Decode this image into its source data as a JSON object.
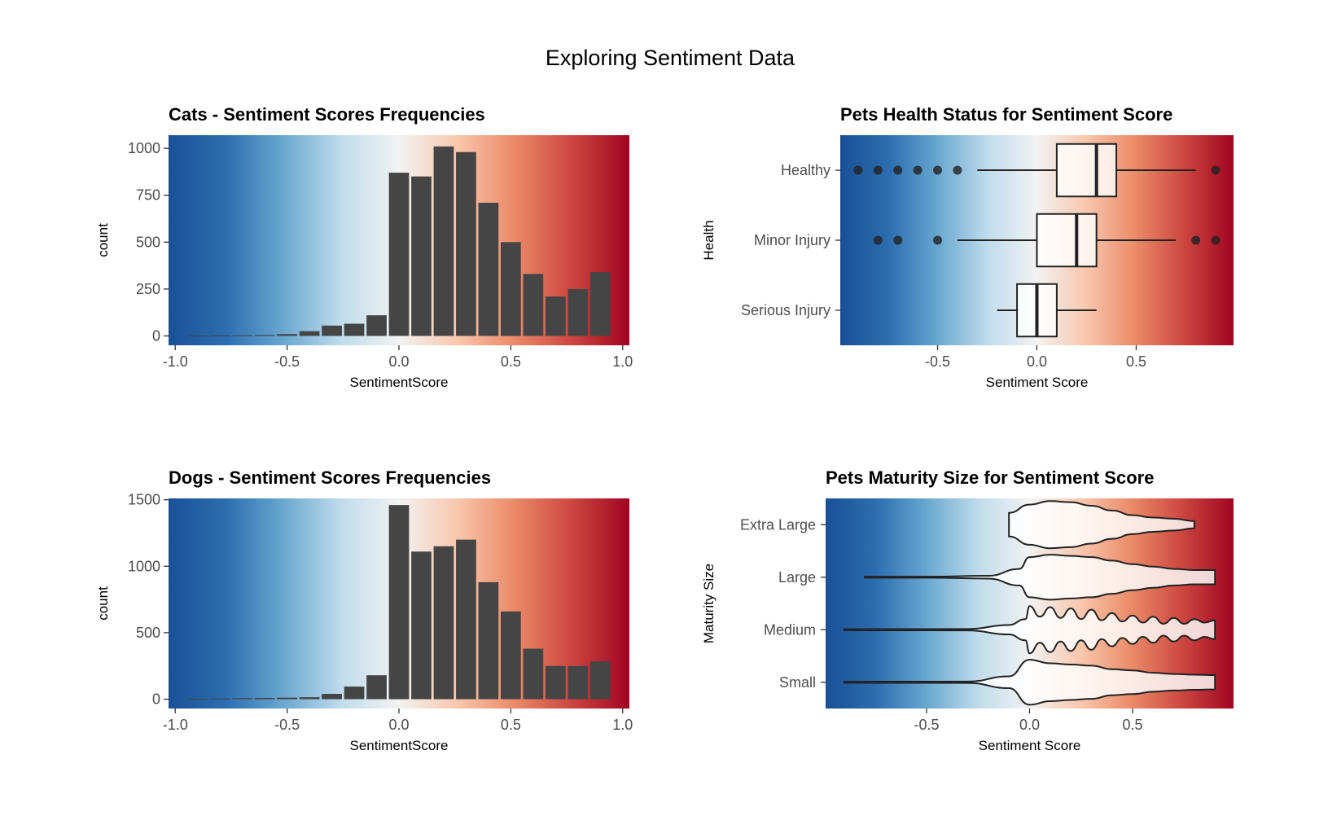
{
  "title": "Exploring Sentiment Data",
  "colors": {
    "gradient": [
      "#1a4f97",
      "#2c6eb0",
      "#6aa8d0",
      "#c0dcec",
      "#f2f2f2",
      "#f9c7ad",
      "#eb8a68",
      "#cc4640",
      "#a10421"
    ],
    "bar": "#454545",
    "outline": "#222222"
  },
  "chart_data": [
    {
      "type": "bar",
      "title": "Cats - Sentiment Scores Frequencies",
      "xlabel": "SentimentScore",
      "ylabel": "count",
      "xlim": [
        -1.03,
        1.03
      ],
      "ylim": [
        -50,
        1070
      ],
      "xticks": [
        -1.0,
        -0.5,
        0.0,
        0.5,
        1.0
      ],
      "xtick_labels": [
        "-1.0",
        "-0.5",
        "0.0",
        "0.5",
        "1.0"
      ],
      "yticks": [
        0,
        250,
        500,
        750,
        1000
      ],
      "ytick_labels": [
        "0",
        "250",
        "500",
        "750",
        "1000"
      ],
      "x": [
        -0.9,
        -0.8,
        -0.7,
        -0.6,
        -0.5,
        -0.4,
        -0.3,
        -0.2,
        -0.1,
        0.0,
        0.1,
        0.2,
        0.3,
        0.4,
        0.5,
        0.6,
        0.7,
        0.8,
        0.9
      ],
      "values": [
        2,
        3,
        4,
        5,
        10,
        25,
        55,
        65,
        110,
        870,
        850,
        1010,
        980,
        710,
        500,
        330,
        210,
        250,
        340
      ],
      "bar_width": 0.09
    },
    {
      "type": "box",
      "title": "Pets Health Status for Sentiment Score",
      "xlabel": "Sentiment Score",
      "ylabel": "Health",
      "xlim": [
        -0.99,
        0.99
      ],
      "xticks": [
        -0.5,
        0.0,
        0.5
      ],
      "xtick_labels": [
        "-0.5",
        "0.0",
        "0.5"
      ],
      "categories": [
        "Healthy",
        "Minor Injury",
        "Serious Injury"
      ],
      "boxes": [
        {
          "name": "Healthy",
          "whisker_low": -0.3,
          "q1": 0.1,
          "median": 0.3,
          "q3": 0.4,
          "whisker_high": 0.8,
          "outliers": [
            -0.9,
            -0.8,
            -0.7,
            -0.6,
            -0.5,
            -0.4,
            0.9
          ]
        },
        {
          "name": "Minor Injury",
          "whisker_low": -0.4,
          "q1": 0.0,
          "median": 0.2,
          "q3": 0.3,
          "whisker_high": 0.7,
          "outliers": [
            -0.8,
            -0.7,
            -0.5,
            0.8,
            0.9
          ]
        },
        {
          "name": "Serious Injury",
          "whisker_low": -0.2,
          "q1": -0.1,
          "median": 0.0,
          "q3": 0.1,
          "whisker_high": 0.3,
          "outliers": []
        }
      ]
    },
    {
      "type": "bar",
      "title": "Dogs - Sentiment Scores Frequencies",
      "xlabel": "SentimentScore",
      "ylabel": "count",
      "xlim": [
        -1.03,
        1.03
      ],
      "ylim": [
        -70,
        1510
      ],
      "xticks": [
        -1.0,
        -0.5,
        0.0,
        0.5,
        1.0
      ],
      "xtick_labels": [
        "-1.0",
        "-0.5",
        "0.0",
        "0.5",
        "1.0"
      ],
      "yticks": [
        0,
        500,
        1000,
        1500
      ],
      "ytick_labels": [
        "0",
        "500",
        "1000",
        "1500"
      ],
      "x": [
        -0.9,
        -0.8,
        -0.7,
        -0.6,
        -0.5,
        -0.4,
        -0.3,
        -0.2,
        -0.1,
        0.0,
        0.1,
        0.2,
        0.3,
        0.4,
        0.5,
        0.6,
        0.7,
        0.8,
        0.9
      ],
      "values": [
        3,
        5,
        8,
        10,
        12,
        15,
        40,
        95,
        180,
        1460,
        1110,
        1150,
        1200,
        880,
        660,
        380,
        250,
        250,
        285
      ],
      "bar_width": 0.09
    },
    {
      "type": "violin",
      "title": "Pets Maturity Size for Sentiment Score",
      "xlabel": "Sentiment Score",
      "ylabel": "Maturity Size",
      "xlim": [
        -0.99,
        0.99
      ],
      "xticks": [
        -0.5,
        0.0,
        0.5
      ],
      "xtick_labels": [
        "-0.5",
        "0.0",
        "0.5"
      ],
      "categories": [
        "Extra Large",
        "Large",
        "Medium",
        "Small"
      ],
      "violins": [
        {
          "name": "Extra Large",
          "x": [
            -0.1,
            0.0,
            0.1,
            0.2,
            0.3,
            0.4,
            0.5,
            0.6,
            0.7,
            0.8
          ],
          "density": [
            0.5,
            0.85,
            1.0,
            0.95,
            0.8,
            0.6,
            0.4,
            0.3,
            0.25,
            0.15
          ]
        },
        {
          "name": "Large",
          "x": [
            -0.8,
            -0.5,
            -0.2,
            -0.05,
            0.0,
            0.1,
            0.2,
            0.3,
            0.4,
            0.5,
            0.6,
            0.7,
            0.8,
            0.9
          ],
          "density": [
            0.02,
            0.02,
            0.06,
            0.35,
            0.85,
            0.95,
            0.9,
            0.85,
            0.7,
            0.55,
            0.45,
            0.35,
            0.3,
            0.3
          ]
        },
        {
          "name": "Medium",
          "x": [
            -0.9,
            -0.3,
            -0.1,
            -0.02,
            0.0,
            0.05,
            0.1,
            0.15,
            0.2,
            0.25,
            0.3,
            0.35,
            0.4,
            0.45,
            0.5,
            0.55,
            0.6,
            0.65,
            0.7,
            0.75,
            0.8,
            0.85,
            0.9
          ],
          "density": [
            0.02,
            0.03,
            0.2,
            0.45,
            1.0,
            0.55,
            0.95,
            0.5,
            0.9,
            0.45,
            0.85,
            0.4,
            0.7,
            0.35,
            0.6,
            0.3,
            0.55,
            0.25,
            0.5,
            0.25,
            0.45,
            0.3,
            0.4
          ]
        },
        {
          "name": "Small",
          "x": [
            -0.9,
            -0.3,
            -0.1,
            0.0,
            0.1,
            0.2,
            0.3,
            0.4,
            0.5,
            0.6,
            0.7,
            0.8,
            0.9
          ],
          "density": [
            0.02,
            0.03,
            0.25,
            0.95,
            0.8,
            0.75,
            0.7,
            0.55,
            0.5,
            0.4,
            0.35,
            0.32,
            0.3
          ]
        }
      ]
    }
  ]
}
